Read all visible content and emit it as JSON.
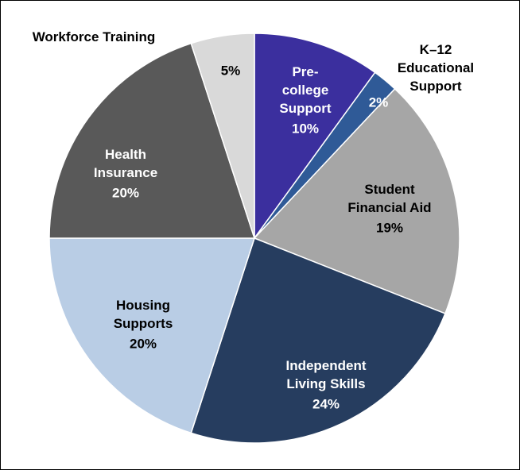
{
  "chart_data": {
    "type": "pie",
    "categories": [
      "Pre-\ncollege\nSupport",
      "K–12\nEducational\nSupport",
      "Student\nFinancial Aid",
      "Independent\nLiving Skills",
      "Housing\nSupports",
      "Health\nInsurance",
      "Workforce Training"
    ],
    "values": [
      10,
      2,
      19,
      24,
      20,
      20,
      5
    ],
    "value_labels": [
      "10%",
      "2%",
      "19%",
      "24%",
      "20%",
      "20%",
      "5%"
    ],
    "colors": [
      "#3b2f9e",
      "#2f5a97",
      "#a6a6a6",
      "#263d5f",
      "#b9cde5",
      "#595959",
      "#d9d9d9"
    ]
  }
}
